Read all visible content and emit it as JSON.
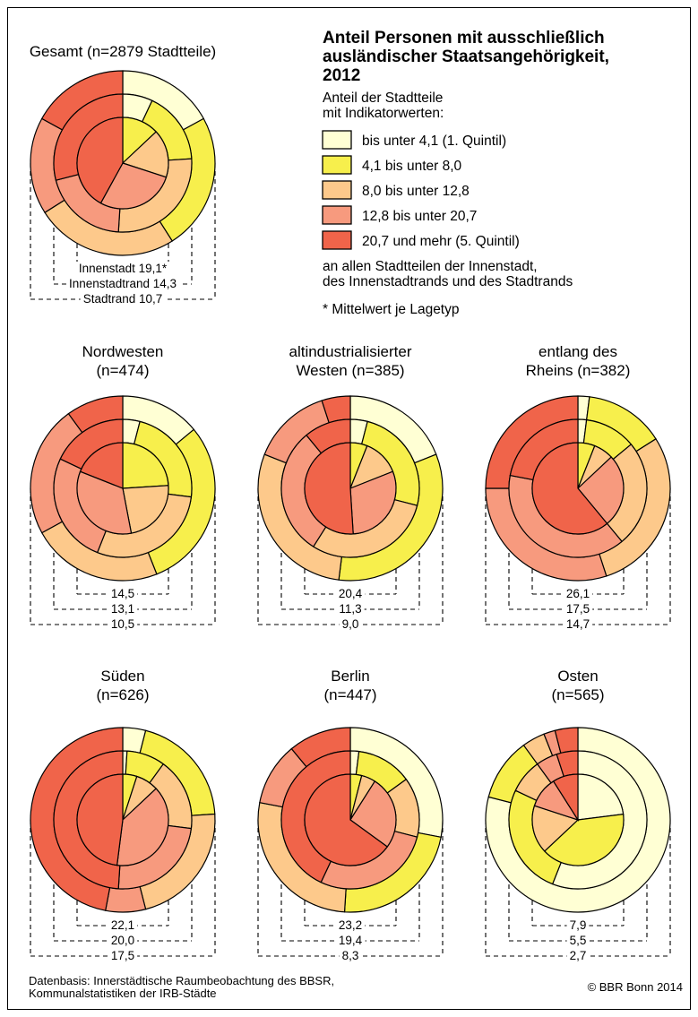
{
  "title_lines": [
    "Anteil Personen mit ausschließlich",
    "ausländischer Staatsangehörigkeit,",
    "2012"
  ],
  "legend": {
    "intro_lines": [
      "Anteil der Stadtteile",
      "mit Indikatorwerten:"
    ],
    "items": [
      {
        "label": "bis unter 4,1 (1. Quintil)",
        "color": "#ffffd4"
      },
      {
        "label": "4,1 bis unter 8,0",
        "color": "#f7ef4c"
      },
      {
        "label": "8,0 bis unter 12,8",
        "color": "#fdc98b"
      },
      {
        "label": "12,8 bis unter 20,7",
        "color": "#f79a7e"
      },
      {
        "label": "20,7 und mehr (5. Quintil)",
        "color": "#f0644a"
      }
    ],
    "outro_lines": [
      "an allen Stadtteilen der Innenstadt,",
      "des Innenstadtrands und des Stadtrands"
    ],
    "footnote": "* Mittelwert je Lagetyp"
  },
  "footer": {
    "source_lines": [
      "Datenbasis: Innerstädtische Raumbeobachtung des BBSR,",
      "Kommunalstatistiken der IRB-Städte"
    ],
    "copyright": "© BBR Bonn 2014"
  },
  "chart_data": [
    {
      "type": "pie",
      "title_lines": [
        "Gesamt (n=2879 Stadtteile)"
      ],
      "rings": [
        {
          "name": "Innenstadt",
          "mean_label": "Innenstadt 19,1*",
          "values": [
            0.0,
            0.13,
            0.17,
            0.28,
            0.42
          ]
        },
        {
          "name": "Innenstadtrand",
          "mean_label": "Innenstadtrand 14,3",
          "values": [
            0.07,
            0.17,
            0.27,
            0.2,
            0.29
          ]
        },
        {
          "name": "Stadtrand",
          "mean_label": "Stadtrand 10,7",
          "values": [
            0.17,
            0.24,
            0.25,
            0.17,
            0.17
          ]
        }
      ]
    },
    {
      "type": "pie",
      "title_lines": [
        "Nordwesten",
        "(n=474)"
      ],
      "rings": [
        {
          "mean_label": "14,5",
          "values": [
            0.0,
            0.24,
            0.23,
            0.34,
            0.19
          ]
        },
        {
          "mean_label": "13,1",
          "values": [
            0.04,
            0.23,
            0.29,
            0.26,
            0.18
          ]
        },
        {
          "mean_label": "10,5",
          "values": [
            0.14,
            0.3,
            0.23,
            0.23,
            0.1
          ]
        }
      ]
    },
    {
      "type": "pie",
      "title_lines": [
        "altindustrialisierter",
        "Westen (n=385)"
      ],
      "rings": [
        {
          "mean_label": "20,4",
          "values": [
            0.0,
            0.06,
            0.13,
            0.3,
            0.51
          ]
        },
        {
          "mean_label": "11,3",
          "values": [
            0.04,
            0.25,
            0.3,
            0.3,
            0.11
          ]
        },
        {
          "mean_label": "9,0",
          "values": [
            0.19,
            0.33,
            0.29,
            0.14,
            0.05
          ]
        }
      ]
    },
    {
      "type": "pie",
      "title_lines": [
        "entlang des",
        "Rheins (n=382)"
      ],
      "rings": [
        {
          "mean_label": "26,1",
          "values": [
            0.0,
            0.06,
            0.07,
            0.26,
            0.61
          ]
        },
        {
          "mean_label": "17,5",
          "values": [
            0.02,
            0.12,
            0.25,
            0.39,
            0.22
          ]
        },
        {
          "mean_label": "14,7",
          "values": [
            0.02,
            0.14,
            0.29,
            0.3,
            0.25
          ]
        }
      ]
    },
    {
      "type": "pie",
      "title_lines": [
        "Süden",
        "(n=626)"
      ],
      "rings": [
        {
          "mean_label": "22,1",
          "values": [
            0.0,
            0.05,
            0.08,
            0.39,
            0.48
          ]
        },
        {
          "mean_label": "20,0",
          "values": [
            0.01,
            0.09,
            0.17,
            0.24,
            0.49
          ]
        },
        {
          "mean_label": "17,5",
          "values": [
            0.04,
            0.2,
            0.22,
            0.07,
            0.47
          ]
        }
      ]
    },
    {
      "type": "pie",
      "title_lines": [
        "Berlin",
        "(n=447)"
      ],
      "rings": [
        {
          "mean_label": "23,2",
          "values": [
            0.0,
            0.04,
            0.05,
            0.26,
            0.65
          ]
        },
        {
          "mean_label": "19,4",
          "values": [
            0.02,
            0.13,
            0.14,
            0.28,
            0.43
          ]
        },
        {
          "mean_label": "8,3",
          "values": [
            0.28,
            0.23,
            0.27,
            0.11,
            0.11
          ]
        }
      ]
    },
    {
      "type": "pie",
      "title_lines": [
        "Osten",
        "(n=565)"
      ],
      "rings": [
        {
          "mean_label": "7,9",
          "values": [
            0.23,
            0.4,
            0.17,
            0.11,
            0.09
          ]
        },
        {
          "mean_label": "5,5",
          "values": [
            0.56,
            0.26,
            0.08,
            0.05,
            0.05
          ]
        },
        {
          "mean_label": "2,7",
          "values": [
            0.79,
            0.11,
            0.04,
            0.02,
            0.04
          ]
        }
      ]
    }
  ]
}
